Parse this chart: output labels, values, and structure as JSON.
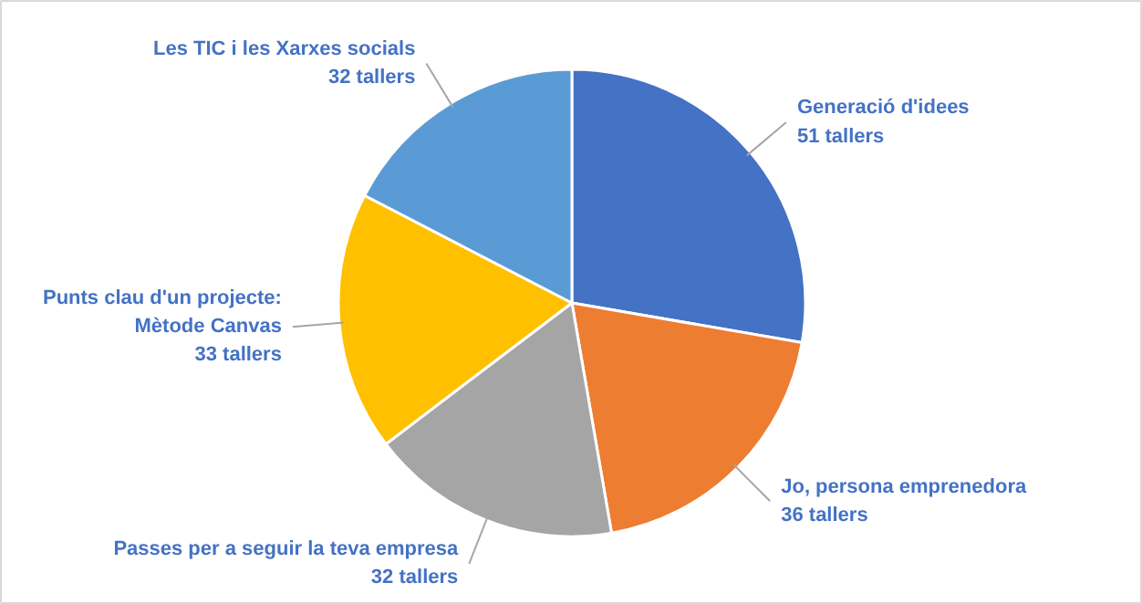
{
  "chart_data": {
    "type": "pie",
    "categories": [
      "Generació d'idees",
      "Jo, persona emprenedora",
      "Passes per a seguir la teva empresa",
      "Punts clau d'un projecte:\nMètode Canvas",
      "Les TIC i les Xarxes socials"
    ],
    "values": [
      51,
      36,
      32,
      33,
      32
    ],
    "value_labels": [
      "51 tallers",
      "36 tallers",
      "32 tallers",
      "33 tallers",
      "32 tallers"
    ],
    "colors": [
      "#4472c4",
      "#ed7d31",
      "#a5a5a5",
      "#ffc000",
      "#5b9bd5"
    ]
  }
}
